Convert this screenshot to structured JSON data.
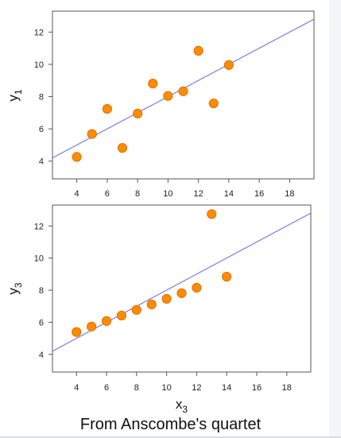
{
  "chart_data": [
    {
      "type": "scatter",
      "title": "",
      "ylabel_main": "y",
      "ylabel_sub": "1",
      "xlabel_main": "",
      "xlabel_sub": "",
      "xlim": [
        2.4,
        19.6
      ],
      "ylim": [
        2.9,
        13.3
      ],
      "xticks": [
        "4",
        "6",
        "8",
        "10",
        "12",
        "14",
        "16",
        "18"
      ],
      "yticks": [
        "4",
        "6",
        "8",
        "10",
        "12"
      ],
      "points": [
        {
          "x": 4,
          "y": 4.26
        },
        {
          "x": 5,
          "y": 5.68
        },
        {
          "x": 6,
          "y": 7.24
        },
        {
          "x": 7,
          "y": 4.82
        },
        {
          "x": 8,
          "y": 6.95
        },
        {
          "x": 9,
          "y": 8.81
        },
        {
          "x": 10,
          "y": 8.04
        },
        {
          "x": 11,
          "y": 8.33
        },
        {
          "x": 12,
          "y": 10.84
        },
        {
          "x": 13,
          "y": 7.58
        },
        {
          "x": 14,
          "y": 9.96
        }
      ],
      "fit_line": {
        "intercept": 3.0,
        "slope": 0.5
      },
      "grid": false
    },
    {
      "type": "scatter",
      "title": "",
      "ylabel_main": "y",
      "ylabel_sub": "3",
      "xlabel_main": "x",
      "xlabel_sub": "3",
      "xlim": [
        2.4,
        19.6
      ],
      "ylim": [
        2.9,
        13.3
      ],
      "xticks": [
        "4",
        "6",
        "8",
        "10",
        "12",
        "14",
        "16",
        "18"
      ],
      "yticks": [
        "4",
        "6",
        "8",
        "10",
        "12"
      ],
      "points": [
        {
          "x": 4,
          "y": 5.39
        },
        {
          "x": 5,
          "y": 5.73
        },
        {
          "x": 6,
          "y": 6.08
        },
        {
          "x": 7,
          "y": 6.42
        },
        {
          "x": 8,
          "y": 6.77
        },
        {
          "x": 9,
          "y": 7.11
        },
        {
          "x": 10,
          "y": 7.46
        },
        {
          "x": 11,
          "y": 7.81
        },
        {
          "x": 12,
          "y": 8.15
        },
        {
          "x": 13,
          "y": 12.74
        },
        {
          "x": 14,
          "y": 8.84
        }
      ],
      "fit_line": {
        "intercept": 3.0,
        "slope": 0.5
      },
      "grid": false
    }
  ],
  "caption": "From Anscombe's quartet",
  "colors": {
    "point_fill": "#ff8c00",
    "point_stroke": "#e06e00",
    "fit_line": "#6f74e8",
    "axis": "#555555"
  }
}
